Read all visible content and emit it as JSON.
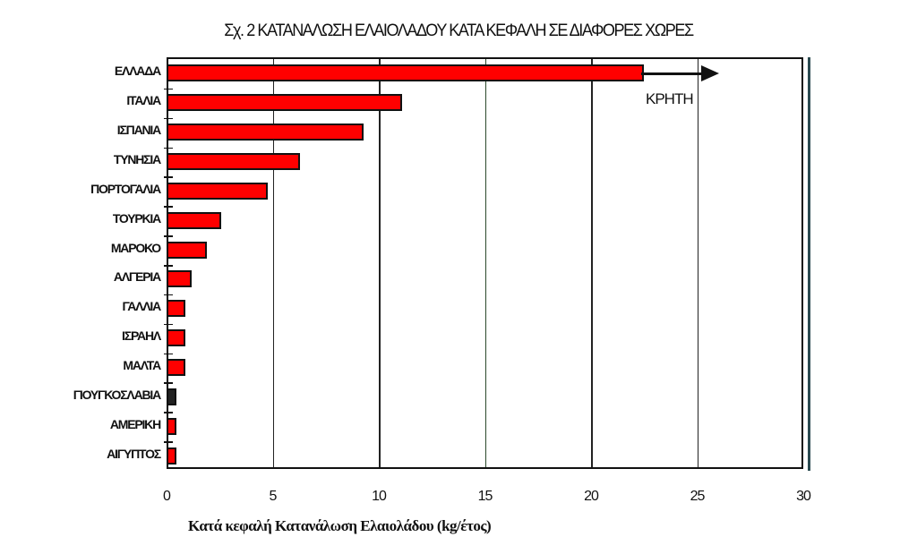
{
  "chart_data": {
    "type": "bar",
    "orientation": "horizontal",
    "title": "Σχ. 2  ΚΑΤΑΝΑΛΩΣΗ ΕΛΑΙΟΛΑΔΟΥ ΚΑΤΑ ΚΕΦΑΛΗ ΣΕ ΔΙΑΦΟΡΕΣ ΧΩΡΕΣ",
    "xlabel": "Κατά κεφαλή Κατανάλωση Ελαιολάδου (kg/έτος)",
    "ylabel": "",
    "xlim": [
      0,
      30
    ],
    "xticks": [
      "0",
      "5",
      "10",
      "15",
      "20",
      "25",
      "30"
    ],
    "grid": "vertical",
    "bar_color": "#ff0000",
    "categories": [
      "ΕΛΛΑΔΑ",
      "ΙΤΑΛΙΑ",
      "ΙΣΠΑΝΙΑ",
      "ΤΥΝΗΣΙΑ",
      "ΠΟΡΤΟΓΑΛΙΑ",
      "ΤΟΥΡΚΙΑ",
      "ΜΑΡΟΚΟ",
      "ΑΛΓΕΡΙΑ",
      "ΓΑΛΛΙΑ",
      "ΙΣΡΑΗΛ",
      "ΜΑΛΤΑ",
      "ΓΙΟΥΓΚΟΣΛΑΒΙΑ",
      "ΑΜΕΡΙΚΗ",
      "ΑΙΓΥΠΤΟΣ"
    ],
    "values": [
      22.4,
      11.0,
      9.2,
      6.2,
      4.7,
      2.5,
      1.8,
      1.1,
      0.8,
      0.8,
      0.8,
      0.4,
      0.4,
      0.4
    ],
    "annotations": [
      {
        "text": "ΚΡΗΤΗ",
        "type": "arrow",
        "from": 22.4,
        "to": 25.2,
        "row": "ΕΛΛΑΔΑ"
      }
    ]
  }
}
